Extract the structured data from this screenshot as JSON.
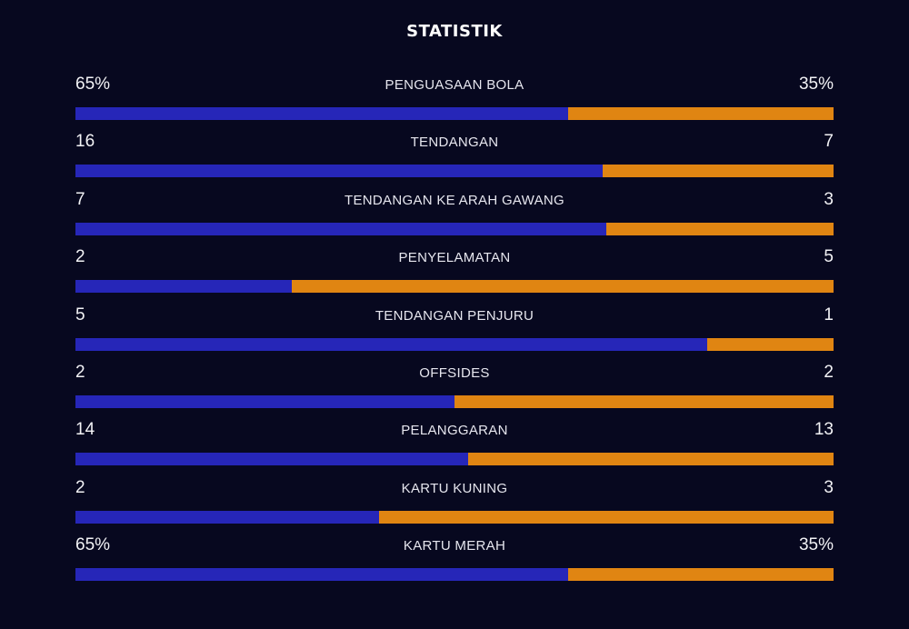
{
  "title": "STATISTIK",
  "colors": {
    "background": "#07081f",
    "home": "#2626b8",
    "away": "#e08512"
  },
  "stats": [
    {
      "label": "PENGUASAAN BOLA",
      "home": "65%",
      "away": "35%",
      "home_share": 0.65
    },
    {
      "label": "TENDANGAN",
      "home": "16",
      "away": "7",
      "home_share": 0.6957
    },
    {
      "label": "TENDANGAN KE ARAH GAWANG",
      "home": "7",
      "away": "3",
      "home_share": 0.7
    },
    {
      "label": "PENYELAMATAN",
      "home": "2",
      "away": "5",
      "home_share": 0.2857
    },
    {
      "label": "TENDANGAN PENJURU",
      "home": "5",
      "away": "1",
      "home_share": 0.8333
    },
    {
      "label": "OFFSIDES",
      "home": "2",
      "away": "2",
      "home_share": 0.5
    },
    {
      "label": "PELANGGARAN",
      "home": "14",
      "away": "13",
      "home_share": 0.5185
    },
    {
      "label": "KARTU KUNING",
      "home": "2",
      "away": "3",
      "home_share": 0.4
    },
    {
      "label": "KARTU MERAH",
      "home": "65%",
      "away": "35%",
      "home_share": 0.65
    }
  ]
}
